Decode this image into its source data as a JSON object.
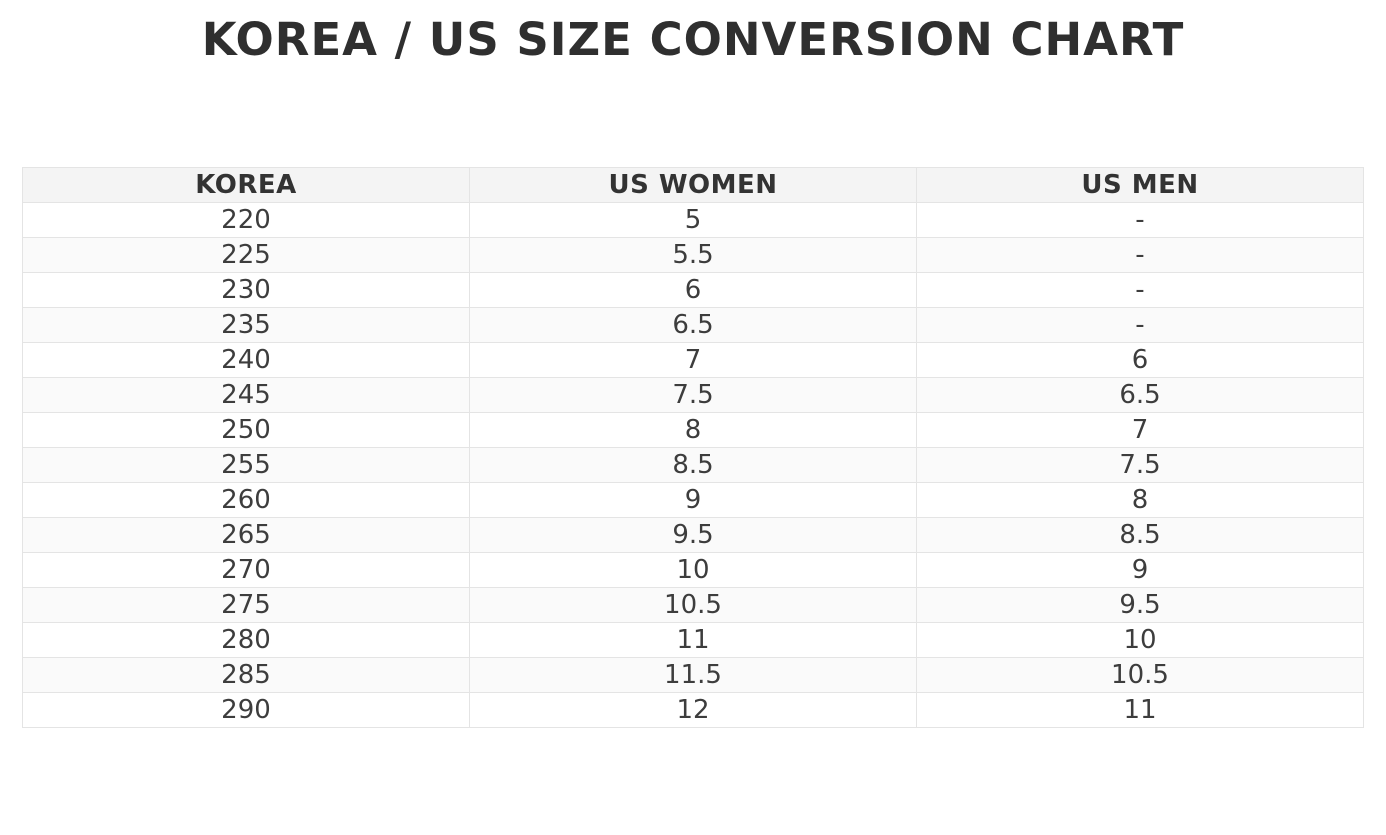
{
  "title": "KOREA / US SIZE CONVERSION CHART",
  "colors": {
    "title_text": "#2f2f2f",
    "header_bg": "#f4f4f4",
    "row_alt_bg": "#fafafa",
    "grid_border": "#e4e4e4",
    "cell_text": "#3d3d3d"
  },
  "chart_data": {
    "type": "table",
    "title": "KOREA / US SIZE CONVERSION CHART",
    "columns": [
      "KOREA",
      "US WOMEN",
      "US MEN"
    ],
    "rows": [
      [
        "220",
        "5",
        "-"
      ],
      [
        "225",
        "5.5",
        "-"
      ],
      [
        "230",
        "6",
        "-"
      ],
      [
        "235",
        "6.5",
        "-"
      ],
      [
        "240",
        "7",
        "6"
      ],
      [
        "245",
        "7.5",
        "6.5"
      ],
      [
        "250",
        "8",
        "7"
      ],
      [
        "255",
        "8.5",
        "7.5"
      ],
      [
        "260",
        "9",
        "8"
      ],
      [
        "265",
        "9.5",
        "8.5"
      ],
      [
        "270",
        "10",
        "9"
      ],
      [
        "275",
        "10.5",
        "9.5"
      ],
      [
        "280",
        "11",
        "10"
      ],
      [
        "285",
        "11.5",
        "10.5"
      ],
      [
        "290",
        "12",
        "11"
      ]
    ]
  }
}
